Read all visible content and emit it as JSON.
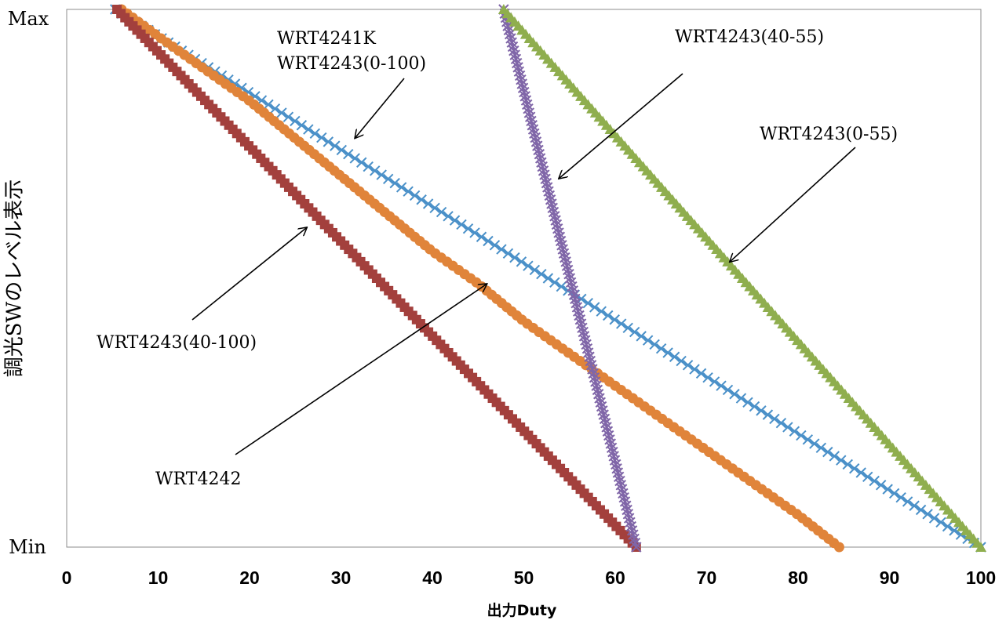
{
  "chart_data": {
    "type": "scatter",
    "xlabel": "出力Duty",
    "ylabel": "調光SWのレベル表示",
    "xlim": [
      0,
      100
    ],
    "xticks": [
      "0",
      "10",
      "20",
      "30",
      "40",
      "50",
      "60",
      "70",
      "80",
      "90",
      "100"
    ],
    "y_ticks": [
      "Min",
      "Max"
    ],
    "ylim": [
      0,
      100
    ],
    "grid": false,
    "series": [
      {
        "name": "WRT4241K\nWRT4243(0-100)",
        "color": "#4a90c8",
        "marker": "x",
        "x": [
          5.3,
          100
        ],
        "y": [
          100,
          0
        ]
      },
      {
        "name": "WRT4242",
        "color": "#e0843a",
        "marker": "circle",
        "x": [
          6,
          10,
          15,
          20,
          25,
          30,
          35,
          40,
          45,
          50,
          55,
          60,
          65,
          70,
          75,
          80,
          84.5
        ],
        "y": [
          100,
          95,
          89,
          83,
          76,
          69,
          62,
          55,
          49,
          42,
          36,
          30,
          24,
          18,
          12,
          6,
          0
        ]
      },
      {
        "name": "WRT4243(40-100)",
        "color": "#a3403d",
        "marker": "square",
        "x": [
          5.5,
          62.3
        ],
        "y": [
          100,
          0
        ]
      },
      {
        "name": "WRT4243(40-55)",
        "color": "#8066a8",
        "marker": "x",
        "x": [
          47.8,
          62.3
        ],
        "y": [
          100,
          0
        ]
      },
      {
        "name": "WRT4243(0-55)",
        "color": "#8fae4e",
        "marker": "triangle",
        "x": [
          47.8,
          100
        ],
        "y": [
          100,
          0
        ]
      }
    ],
    "annotations": [
      {
        "lines": [
          "WRT4241K",
          "WRT4243(0-100)"
        ],
        "arrow_to": [
          31.5,
          76
        ]
      },
      {
        "lines": [
          "WRT4243(40-55)"
        ],
        "arrow_to": [
          53.8,
          68.5
        ]
      },
      {
        "lines": [
          "WRT4243(0-55)"
        ],
        "arrow_to": [
          72.5,
          53
        ]
      },
      {
        "lines": [
          "WRT4243(40-100)"
        ],
        "arrow_to": [
          26.3,
          59.5
        ]
      },
      {
        "lines": [
          "WRT4242"
        ],
        "arrow_to": [
          46,
          49
        ]
      }
    ]
  }
}
